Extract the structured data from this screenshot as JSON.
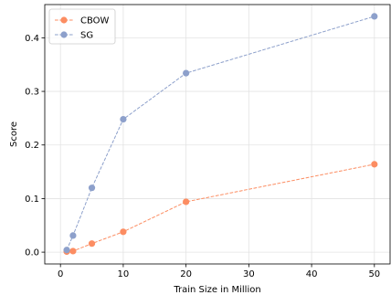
{
  "chart_data": {
    "type": "line",
    "title": "",
    "xlabel": "Train Size in Million",
    "ylabel": "Score",
    "xlim": [
      -2.5,
      52.5
    ],
    "ylim": [
      -0.022,
      0.462
    ],
    "xticks": [
      0,
      10,
      20,
      30,
      40,
      50
    ],
    "yticks": [
      0.0,
      0.1,
      0.2,
      0.3,
      0.4
    ],
    "xtick_labels": [
      "0",
      "10",
      "20",
      "30",
      "40",
      "50"
    ],
    "ytick_labels": [
      "0.0",
      "0.1",
      "0.2",
      "0.3",
      "0.4"
    ],
    "grid": true,
    "legend_position": "top-left",
    "x": [
      1,
      2,
      5,
      10,
      20,
      50
    ],
    "series": [
      {
        "name": "CBOW",
        "color": "#fc8d62",
        "values": [
          0.001,
          0.002,
          0.016,
          0.038,
          0.094,
          0.164
        ]
      },
      {
        "name": "SG",
        "color": "#8da0cb",
        "values": [
          0.004,
          0.031,
          0.12,
          0.248,
          0.334,
          0.44
        ]
      }
    ],
    "line_style": "dashed",
    "marker": "circle"
  }
}
